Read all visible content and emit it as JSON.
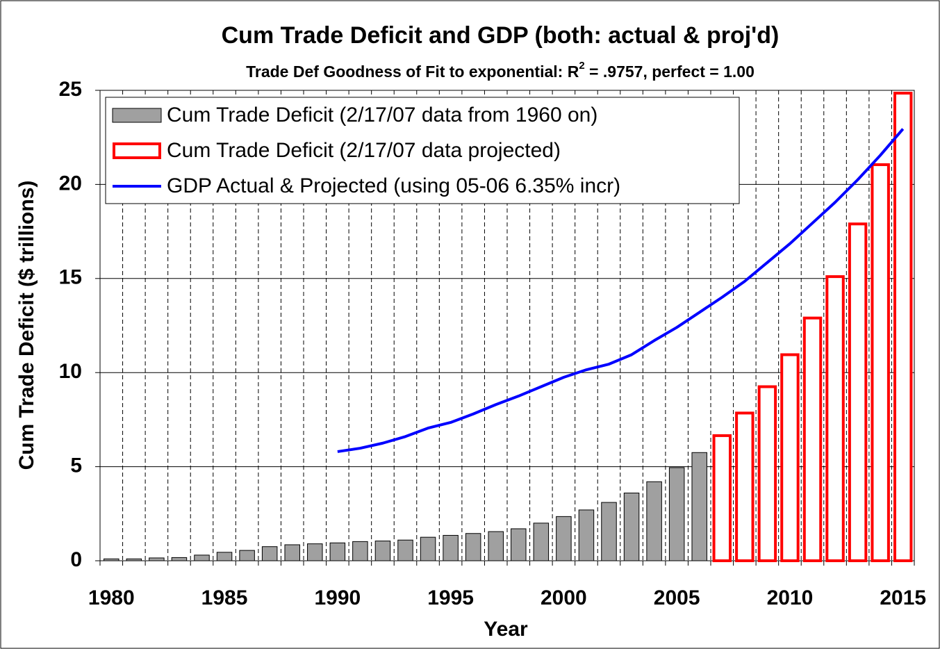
{
  "chart_data": {
    "type": "bar",
    "title": "Cum Trade Deficit and GDP (both: actual & proj'd)",
    "subtitle": [
      "Trade Def Goodness of Fit to exponential: R",
      "2",
      " = .9757, perfect = 1.00"
    ],
    "x_label": "Year",
    "y_label": "Cum Trade Deficit ($ trillions)",
    "categories": [
      "1980",
      null,
      null,
      null,
      null,
      "1985",
      null,
      null,
      null,
      null,
      "1990",
      null,
      null,
      null,
      null,
      "1995",
      null,
      null,
      null,
      null,
      "2000",
      null,
      null,
      null,
      null,
      "2005",
      null,
      null,
      null,
      null,
      "2010",
      null,
      null,
      null,
      null,
      "2015"
    ],
    "series": [
      {
        "name": "Cum Trade Deficit (2/17/07 data from 1960 on)",
        "kind": "bar",
        "color": "#a0a0a0",
        "values": [
          0.1,
          0.1,
          0.15,
          0.17,
          0.3,
          0.45,
          0.55,
          0.75,
          0.85,
          0.9,
          0.95,
          1.02,
          1.05,
          1.1,
          1.25,
          1.35,
          1.45,
          1.55,
          1.7,
          2.0,
          2.35,
          2.7,
          3.1,
          3.6,
          4.2,
          4.95,
          5.75,
          null,
          null,
          null,
          null,
          null,
          null,
          null,
          null,
          null
        ]
      },
      {
        "name": "Cum Trade Deficit (2/17/07 data projected)",
        "kind": "outline-bar",
        "color": "#ff0000",
        "values": [
          null,
          null,
          null,
          null,
          null,
          null,
          null,
          null,
          null,
          null,
          null,
          null,
          null,
          null,
          null,
          null,
          null,
          null,
          null,
          null,
          null,
          null,
          null,
          null,
          null,
          null,
          null,
          6.65,
          7.85,
          9.25,
          10.95,
          12.9,
          15.1,
          17.9,
          21.05,
          24.85
        ]
      },
      {
        "name": "GDP Actual & Projected (using 05-06 6.35% incr)",
        "kind": "line",
        "color": "#0000ff",
        "values": [
          null,
          null,
          null,
          null,
          null,
          null,
          null,
          null,
          null,
          null,
          5.8,
          5.98,
          6.25,
          6.6,
          7.05,
          7.35,
          7.8,
          8.3,
          8.75,
          9.25,
          9.75,
          10.15,
          10.45,
          10.95,
          11.7,
          12.4,
          13.2,
          14.0,
          14.85,
          15.85,
          16.85,
          17.95,
          19.05,
          20.25,
          21.55,
          22.95
        ]
      }
    ],
    "ylim": [
      0,
      25
    ],
    "yticks": [
      0,
      5,
      10,
      15,
      20,
      25
    ],
    "grid": true,
    "legend": "upper left"
  }
}
